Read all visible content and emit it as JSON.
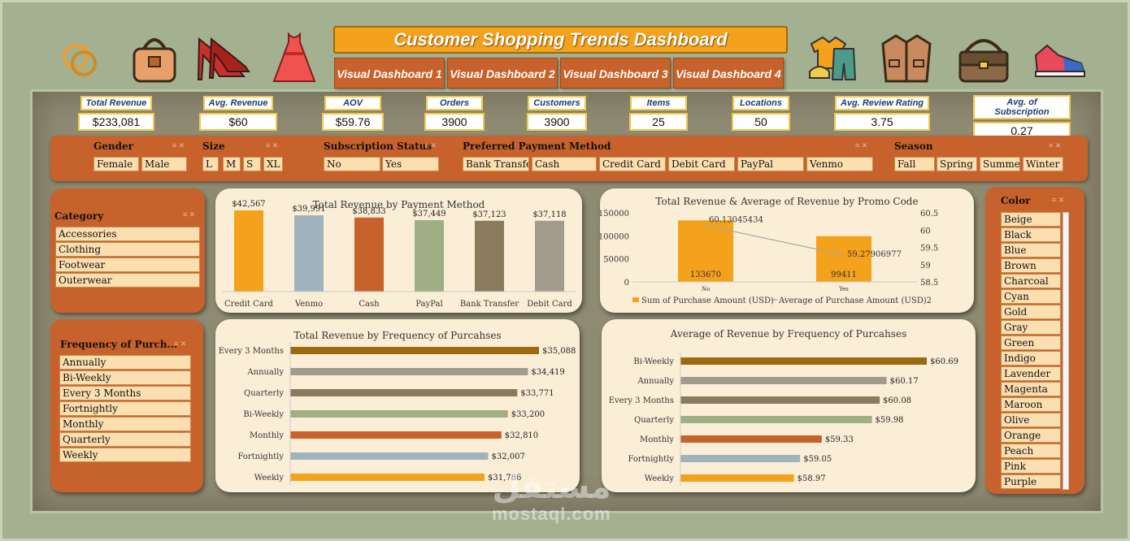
{
  "header": {
    "title": "Customer Shopping Trends Dashboard",
    "tabs": [
      "Visual Dashboard 1",
      "Visual Dashboard 2",
      "Visual Dashboard 3",
      "Visual Dashboard 4"
    ]
  },
  "kpis": [
    {
      "label": "Total Revenue",
      "value": "$233,081"
    },
    {
      "label": "Avg. Revenue",
      "value": "$60"
    },
    {
      "label": "AOV",
      "value": "$59.76"
    },
    {
      "label": "Orders",
      "value": "3900"
    },
    {
      "label": "Customers",
      "value": "3900"
    },
    {
      "label": "Items",
      "value": "25"
    },
    {
      "label": "Locations",
      "value": "50"
    },
    {
      "label": "Avg.  Review Rating",
      "value": "3.75"
    },
    {
      "label": "Avg. of Subscription",
      "value": "0.27"
    }
  ],
  "slicers": {
    "gender": {
      "title": "Gender",
      "items": [
        "Female",
        "Male"
      ]
    },
    "size": {
      "title": "Size",
      "items": [
        "L",
        "M",
        "S",
        "XL"
      ]
    },
    "subscription": {
      "title": "Subscription Status",
      "items": [
        "No",
        "Yes"
      ]
    },
    "payment": {
      "title": "Preferred Payment Method",
      "items": [
        "Bank Transfer",
        "Cash",
        "Credit Card",
        "Debit Card",
        "PayPal",
        "Venmo"
      ]
    },
    "season": {
      "title": "Season",
      "items": [
        "Fall",
        "Spring",
        "Summer",
        "Winter"
      ]
    },
    "category": {
      "title": "Category",
      "items": [
        "Accessories",
        "Clothing",
        "Footwear",
        "Outerwear"
      ]
    },
    "frequency": {
      "title": "Frequency of Purch...",
      "items": [
        "Annually",
        "Bi-Weekly",
        "Every 3 Months",
        "Fortnightly",
        "Monthly",
        "Quarterly",
        "Weekly"
      ]
    },
    "color": {
      "title": "Color",
      "items": [
        "Beige",
        "Black",
        "Blue",
        "Brown",
        "Charcoal",
        "Cyan",
        "Gold",
        "Gray",
        "Green",
        "Indigo",
        "Lavender",
        "Magenta",
        "Maroon",
        "Olive",
        "Orange",
        "Peach",
        "Pink",
        "Purple"
      ]
    }
  },
  "watermark": {
    "arabic": "مستقل",
    "latin": "mostaql.com"
  },
  "chart_data": [
    {
      "type": "bar",
      "title": "Total Revenue by Payment Method",
      "categories": [
        "Credit Card",
        "Venmo",
        "Cash",
        "PayPal",
        "Bank Transfer",
        "Debit Card"
      ],
      "values": [
        42567,
        39991,
        38833,
        37449,
        37123,
        37118
      ],
      "labels": [
        "$42,567",
        "$39,991",
        "$38,833",
        "$37,449",
        "$37,123",
        "$37,118"
      ],
      "colors": [
        "#f4a11c",
        "#9fb3bd",
        "#c8622c",
        "#9fae84",
        "#8a7a5e",
        "#a39a8e"
      ]
    },
    {
      "type": "bar+line",
      "title": "Total Revenue & Average of Revenue by Promo Code",
      "categories": [
        "No",
        "Yes"
      ],
      "series": [
        {
          "name": "Sum of Purchase Amount (USD)",
          "values": [
            133670,
            99411
          ],
          "labels": [
            "133670",
            "99411"
          ],
          "color": "#f4a11c"
        },
        {
          "name": "Average of Purchase Amount (USD)2",
          "values": [
            60.13045434,
            59.27906977
          ],
          "labels": [
            "60.13045434",
            "59.27906977"
          ],
          "color": "#b7b2a8"
        }
      ],
      "yticks": [
        "150000",
        "100000",
        "50000",
        "0"
      ],
      "y2ticks": [
        "60.5",
        "60",
        "59.5",
        "59",
        "58.5"
      ],
      "ylim": [
        0,
        150000
      ],
      "y2lim": [
        58.5,
        60.5
      ]
    },
    {
      "type": "bar",
      "orientation": "horizontal",
      "title": "Total Revenue by Frequency of Purcahses",
      "categories": [
        "Every 3 Months",
        "Annually",
        "Quarterly",
        "Bi-Weekly",
        "Monthly",
        "Fortnightly",
        "Weekly"
      ],
      "values": [
        35088,
        34419,
        33771,
        33200,
        32810,
        32007,
        31786
      ],
      "labels": [
        "$35,088",
        "$34,419",
        "$33,771",
        "$33,200",
        "$32,810",
        "$32,007",
        "$31,786"
      ],
      "colors": [
        "#9b6a10",
        "#a39a8e",
        "#8a7a5e",
        "#9fae84",
        "#c8622c",
        "#9fb3bd",
        "#f4a11c"
      ]
    },
    {
      "type": "bar",
      "orientation": "horizontal",
      "title": "Average of Revenue by Frequency of Purcahses",
      "categories": [
        "Bi-Weekly",
        "Annually",
        "Every 3 Months",
        "Quarterly",
        "Monthly",
        "Fortnightly",
        "Weekly"
      ],
      "values": [
        60.69,
        60.17,
        60.08,
        59.98,
        59.33,
        59.05,
        58.97
      ],
      "labels": [
        "$60.69",
        "$60.17",
        "$60.08",
        "$59.98",
        "$59.33",
        "$59.05",
        "$58.97"
      ],
      "colors": [
        "#9b6a10",
        "#a39a8e",
        "#8a7a5e",
        "#9fae84",
        "#c8622c",
        "#9fb3bd",
        "#f4a11c"
      ]
    }
  ]
}
